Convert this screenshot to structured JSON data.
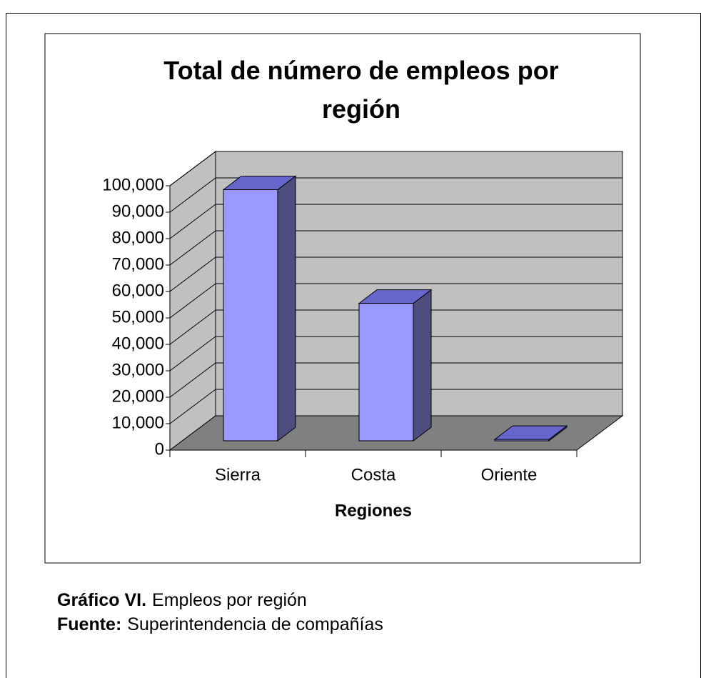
{
  "chart_data": {
    "type": "bar3d",
    "title": "Total de número de empleos por región",
    "x_label": "Regiones",
    "categories": [
      "Sierra",
      "Costa",
      "Oriente"
    ],
    "values": [
      95000,
      52000,
      500
    ],
    "color": "#9999ff",
    "side_color": "#4d4d80",
    "top_color": "#6666cc",
    "ylim": [
      0,
      100000
    ],
    "yticks": [
      0,
      {
        "value": 10000,
        "label": "10,000"
      },
      {
        "value": 20000,
        "label": "20,000"
      },
      {
        "value": 30000,
        "label": "30,000"
      },
      {
        "value": 40000,
        "label": "40,000"
      },
      {
        "value": 50000,
        "label": "50,000"
      },
      {
        "value": 60000,
        "label": "60,000"
      },
      {
        "value": 70000,
        "label": "70,000"
      },
      {
        "value": 80000,
        "label": "80,000"
      },
      {
        "value": 90000,
        "label": "90,000"
      },
      {
        "value": 100000,
        "label": "100,000"
      }
    ],
    "grid": true
  },
  "caption": {
    "figure_label": "Gráfico VI.",
    "figure_text": "Empleos por región",
    "source_label": "Fuente:",
    "source_text": "Superintendencia de compañías"
  }
}
